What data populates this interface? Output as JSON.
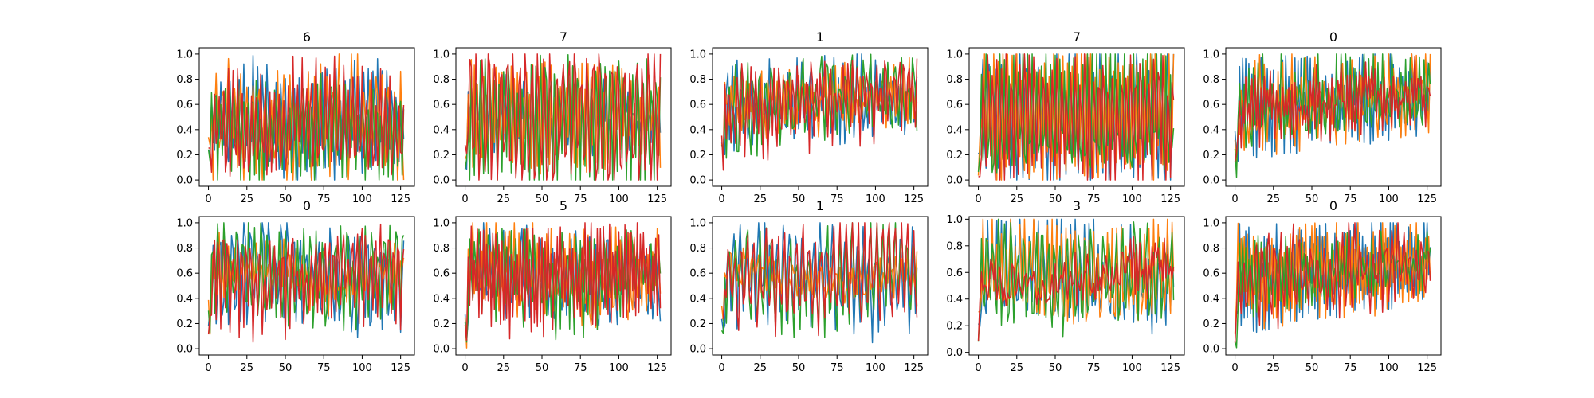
{
  "colors": [
    "#1f77b4",
    "#ff7f0e",
    "#2ca02c",
    "#d62728"
  ],
  "chart_data": [
    {
      "type": "line",
      "title": "6",
      "xlim": [
        -6,
        134
      ],
      "ylim": [
        -0.05,
        1.05
      ],
      "xticks": [
        0,
        25,
        50,
        75,
        100,
        125
      ],
      "xtick_labels": [
        "0",
        "25",
        "50",
        "75",
        "100",
        "125"
      ],
      "yticks": [
        0,
        0.2,
        0.4,
        0.6,
        0.8,
        1.0
      ],
      "ytick_labels": [
        "0.0",
        "0.2",
        "0.4",
        "0.6",
        "0.8",
        "1.0"
      ],
      "series_count": 4,
      "points_per_series": 128,
      "seed": 11,
      "profile": "low",
      "series": []
    },
    {
      "type": "line",
      "title": "7",
      "xlim": [
        -6,
        134
      ],
      "ylim": [
        -0.05,
        1.05
      ],
      "xticks": [
        0,
        25,
        50,
        75,
        100,
        125
      ],
      "xtick_labels": [
        "0",
        "25",
        "50",
        "75",
        "100",
        "125"
      ],
      "yticks": [
        0,
        0.2,
        0.4,
        0.6,
        0.8,
        1.0
      ],
      "ytick_labels": [
        "0.0",
        "0.2",
        "0.4",
        "0.6",
        "0.8",
        "1.0"
      ],
      "series_count": 4,
      "points_per_series": 128,
      "seed": 23,
      "profile": "full",
      "series": []
    },
    {
      "type": "line",
      "title": "1",
      "xlim": [
        -6,
        134
      ],
      "ylim": [
        -0.05,
        1.05
      ],
      "xticks": [
        0,
        25,
        50,
        75,
        100,
        125
      ],
      "xtick_labels": [
        "0",
        "25",
        "50",
        "75",
        "100",
        "125"
      ],
      "yticks": [
        0,
        0.2,
        0.4,
        0.6,
        0.8,
        1.0
      ],
      "ytick_labels": [
        "0.0",
        "0.2",
        "0.4",
        "0.6",
        "0.8",
        "1.0"
      ],
      "series_count": 4,
      "points_per_series": 128,
      "seed": 37,
      "profile": "high",
      "series": []
    },
    {
      "type": "line",
      "title": "7",
      "xlim": [
        -6,
        134
      ],
      "ylim": [
        -0.05,
        1.05
      ],
      "xticks": [
        0,
        25,
        50,
        75,
        100,
        125
      ],
      "xtick_labels": [
        "0",
        "25",
        "50",
        "75",
        "100",
        "125"
      ],
      "yticks": [
        0,
        0.2,
        0.4,
        0.6,
        0.8,
        1.0
      ],
      "ytick_labels": [
        "0.0",
        "0.2",
        "0.4",
        "0.6",
        "0.8",
        "1.0"
      ],
      "series_count": 4,
      "points_per_series": 128,
      "seed": 41,
      "profile": "full",
      "series": []
    },
    {
      "type": "line",
      "title": "0",
      "xlim": [
        -6,
        134
      ],
      "ylim": [
        -0.05,
        1.05
      ],
      "xticks": [
        0,
        25,
        50,
        75,
        100,
        125
      ],
      "xtick_labels": [
        "0",
        "25",
        "50",
        "75",
        "100",
        "125"
      ],
      "yticks": [
        0,
        0.2,
        0.4,
        0.6,
        0.8,
        1.0
      ],
      "ytick_labels": [
        "0.0",
        "0.2",
        "0.4",
        "0.6",
        "0.8",
        "1.0"
      ],
      "series_count": 4,
      "points_per_series": 128,
      "seed": 53,
      "profile": "high",
      "series": []
    },
    {
      "type": "line",
      "title": "0",
      "xlim": [
        -6,
        134
      ],
      "ylim": [
        -0.05,
        1.05
      ],
      "xticks": [
        0,
        25,
        50,
        75,
        100,
        125
      ],
      "xtick_labels": [
        "0",
        "25",
        "50",
        "75",
        "100",
        "125"
      ],
      "yticks": [
        0,
        0.2,
        0.4,
        0.6,
        0.8,
        1.0
      ],
      "ytick_labels": [
        "0.0",
        "0.2",
        "0.4",
        "0.6",
        "0.8",
        "1.0"
      ],
      "series_count": 4,
      "points_per_series": 128,
      "seed": 67,
      "profile": "mid",
      "series": []
    },
    {
      "type": "line",
      "title": "5",
      "xlim": [
        -6,
        134
      ],
      "ylim": [
        -0.05,
        1.05
      ],
      "xticks": [
        0,
        25,
        50,
        75,
        100,
        125
      ],
      "xtick_labels": [
        "0",
        "25",
        "50",
        "75",
        "100",
        "125"
      ],
      "yticks": [
        0,
        0.2,
        0.4,
        0.6,
        0.8,
        1.0
      ],
      "ytick_labels": [
        "0.0",
        "0.2",
        "0.4",
        "0.6",
        "0.8",
        "1.0"
      ],
      "series_count": 4,
      "points_per_series": 128,
      "seed": 71,
      "profile": "mid",
      "series": []
    },
    {
      "type": "line",
      "title": "1",
      "xlim": [
        -6,
        134
      ],
      "ylim": [
        -0.05,
        1.05
      ],
      "xticks": [
        0,
        25,
        50,
        75,
        100,
        125
      ],
      "xtick_labels": [
        "0",
        "25",
        "50",
        "75",
        "100",
        "125"
      ],
      "yticks": [
        0,
        0.2,
        0.4,
        0.6,
        0.8,
        1.0
      ],
      "ytick_labels": [
        "0.0",
        "0.2",
        "0.4",
        "0.6",
        "0.8",
        "1.0"
      ],
      "series_count": 4,
      "points_per_series": 128,
      "seed": 83,
      "profile": "mid",
      "series": []
    },
    {
      "type": "line",
      "title": "3",
      "xlim": [
        -6,
        134
      ],
      "ylim": [
        -0.02,
        1.02
      ],
      "xticks": [
        0,
        25,
        50,
        75,
        100,
        125
      ],
      "xtick_labels": [
        "0",
        "25",
        "50",
        "75",
        "100",
        "125"
      ],
      "yticks": [
        0,
        0.2,
        0.4,
        0.6,
        0.8,
        1.0
      ],
      "ytick_labels": [
        "0.0",
        "0.2",
        "0.4",
        "0.6",
        "0.8",
        "1.0"
      ],
      "series_count": 4,
      "points_per_series": 128,
      "seed": 97,
      "profile": "mid",
      "series": []
    },
    {
      "type": "line",
      "title": "0",
      "xlim": [
        -6,
        134
      ],
      "ylim": [
        -0.05,
        1.05
      ],
      "xticks": [
        0,
        25,
        50,
        75,
        100,
        125
      ],
      "xtick_labels": [
        "0",
        "25",
        "50",
        "75",
        "100",
        "125"
      ],
      "yticks": [
        0,
        0.2,
        0.4,
        0.6,
        0.8,
        1.0
      ],
      "ytick_labels": [
        "0.0",
        "0.2",
        "0.4",
        "0.6",
        "0.8",
        "1.0"
      ],
      "series_count": 4,
      "points_per_series": 128,
      "seed": 101,
      "profile": "high",
      "series": []
    }
  ]
}
